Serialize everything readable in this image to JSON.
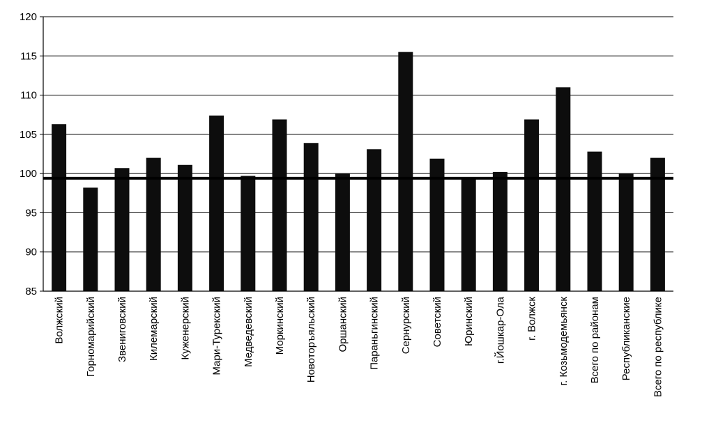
{
  "chart_data": {
    "type": "bar",
    "title": "",
    "xlabel": "",
    "ylabel": "",
    "ylim": [
      85,
      120
    ],
    "yticks": [
      85,
      90,
      95,
      100,
      105,
      110,
      115,
      120
    ],
    "grid": true,
    "colors": {
      "bar": "#0d0d0d",
      "reference_line": "#000000",
      "grid": "#000000"
    },
    "reference_line": 99.4,
    "categories": [
      "Волжский",
      "Горномарийский",
      "Звениговский",
      "Килемарский",
      "Куженерский",
      "Мари-Турекский",
      "Медведевский",
      "Моркинский",
      "Новоторъяльский",
      "Оршанский",
      "Параньгинский",
      "Сернурский",
      "Советский",
      "Юринский",
      "г.Йошкар-Ола",
      "г. Волжск",
      "г. Козьмодемьянск",
      "Всего по районам",
      "Республиканские",
      "Всего по республике"
    ],
    "values": [
      106.3,
      98.2,
      100.7,
      102,
      101.1,
      107.4,
      99.7,
      106.9,
      103.9,
      100,
      103.1,
      115.5,
      101.9,
      99.5,
      100.2,
      106.9,
      111,
      102.8,
      100,
      102
    ]
  }
}
